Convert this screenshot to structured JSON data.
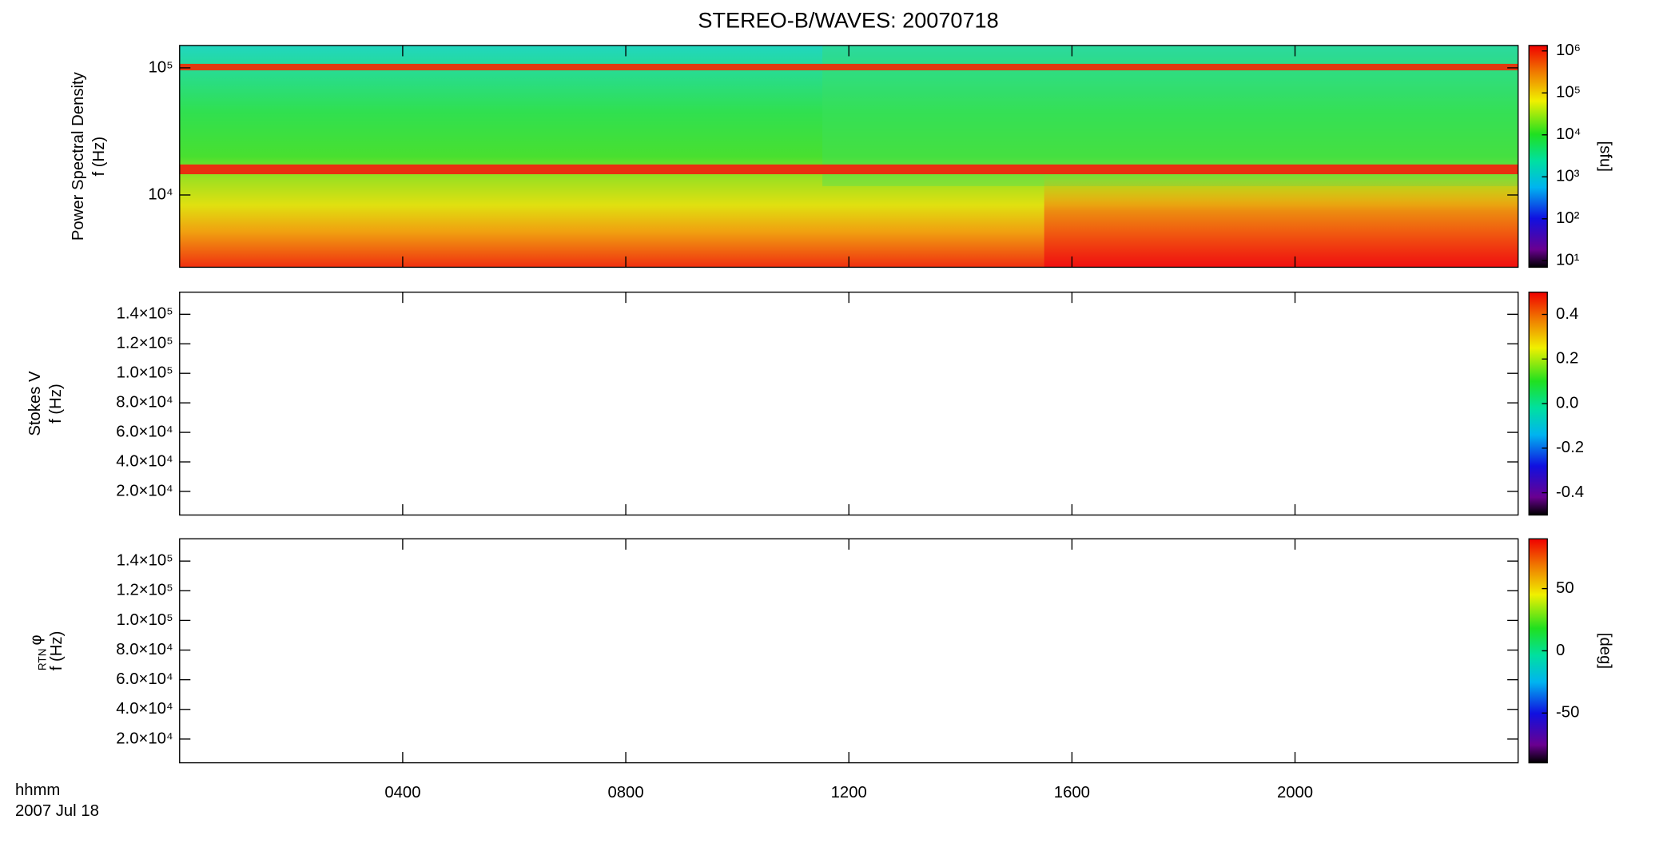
{
  "title": "STEREO-B/WAVES: 20070718",
  "x_axis": {
    "labels": [
      "hhmm",
      "2007 Jul 18"
    ],
    "xlim": [
      0,
      24
    ],
    "xticks": [
      {
        "value": 4,
        "label": "0400"
      },
      {
        "value": 8,
        "label": "0800"
      },
      {
        "value": 12,
        "label": "1200"
      },
      {
        "value": 16,
        "label": "1600"
      },
      {
        "value": 20,
        "label": "2000"
      }
    ]
  },
  "panels": [
    {
      "ylabel": "Power Spectral Density",
      "ylabel_unit": "f (Hz)",
      "log_scale": true,
      "ylim": [
        2700,
        150000
      ],
      "yticks": [
        {
          "value": 10000,
          "label": "10⁴"
        },
        {
          "value": 100000,
          "label": "10⁵"
        }
      ],
      "colorbar": {
        "log_scale": true,
        "zlim": [
          7,
          1350000
        ],
        "label": "[sfu]",
        "ticks": [
          {
            "value": 10,
            "label": "10¹"
          },
          {
            "value": 100,
            "label": "10²"
          },
          {
            "value": 1000,
            "label": "10³"
          },
          {
            "value": 10000,
            "label": "10⁴"
          },
          {
            "value": 100000,
            "label": "10⁵"
          },
          {
            "value": 1000000,
            "label": "10⁶"
          }
        ]
      }
    },
    {
      "ylabel": "Stokes V",
      "ylabel_unit": "f (Hz)",
      "log_scale": false,
      "ylim": [
        4000,
        155000
      ],
      "yticks": [
        {
          "value": 20000,
          "label": "2.0×10⁴"
        },
        {
          "value": 40000,
          "label": "4.0×10⁴"
        },
        {
          "value": 60000,
          "label": "6.0×10⁴"
        },
        {
          "value": 80000,
          "label": "8.0×10⁴"
        },
        {
          "value": 100000,
          "label": "1.0×10⁵"
        },
        {
          "value": 120000,
          "label": "1.2×10⁵"
        },
        {
          "value": 140000,
          "label": "1.4×10⁵"
        }
      ],
      "colorbar": {
        "log_scale": false,
        "zlim": [
          -0.5,
          0.5
        ],
        "ticks": [
          -0.4,
          -0.2,
          {
            "value": 0,
            "label": "0.0"
          },
          0.2,
          0.4
        ]
      }
    },
    {
      "ylabel": "φ",
      "ylabel_subscript": "RTN",
      "ylabel_unit": "f (Hz)",
      "log_scale": false,
      "ylim": [
        4000,
        155000
      ],
      "yticks": [
        {
          "value": 20000,
          "label": "2.0×10⁴"
        },
        {
          "value": 40000,
          "label": "4.0×10⁴"
        },
        {
          "value": 60000,
          "label": "6.0×10⁴"
        },
        {
          "value": 80000,
          "label": "8.0×10⁴"
        },
        {
          "value": 100000,
          "label": "1.0×10⁵"
        },
        {
          "value": 120000,
          "label": "1.2×10⁵"
        },
        {
          "value": 140000,
          "label": "1.4×10⁵"
        }
      ],
      "colorbar": {
        "log_scale": false,
        "zlim": [
          -90,
          90
        ],
        "label": "[deg]",
        "ticks": [
          -50,
          0,
          50
        ]
      }
    }
  ]
}
